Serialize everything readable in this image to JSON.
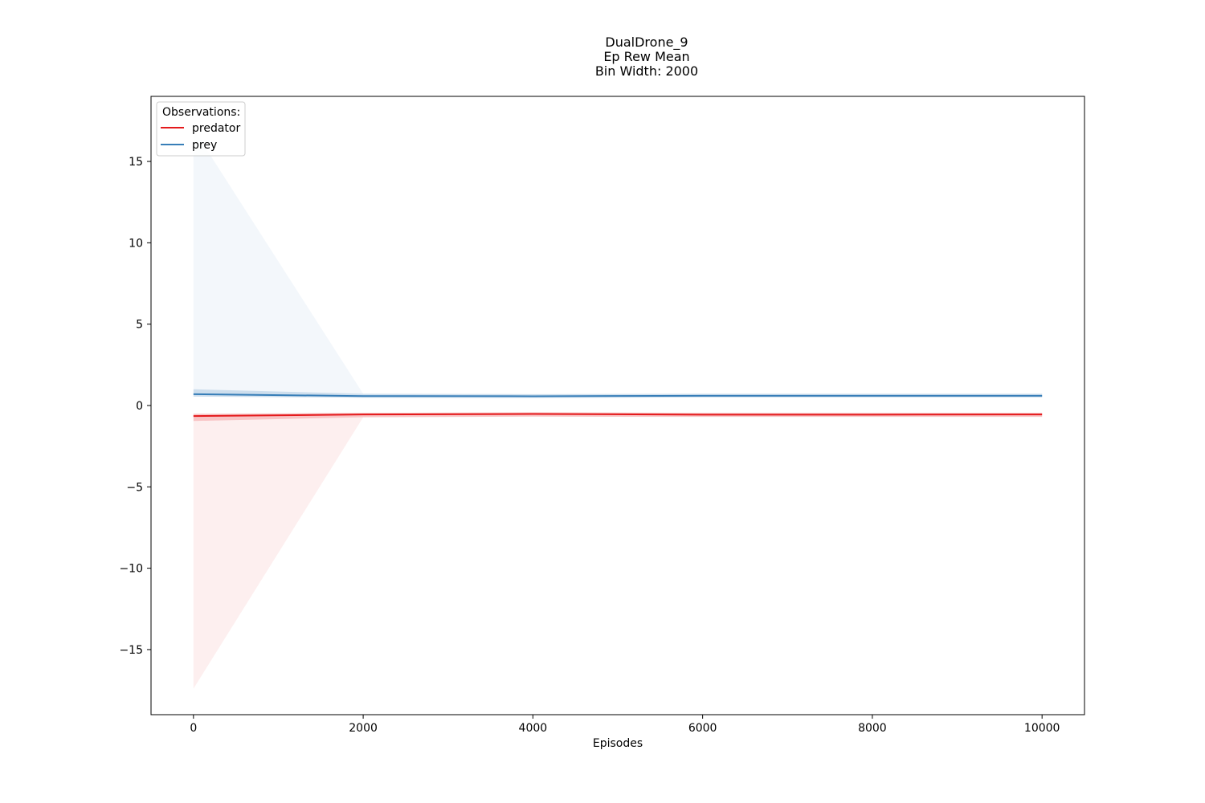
{
  "chart_data": {
    "type": "line",
    "title_lines": [
      "DualDrone_9",
      "Ep Rew Mean",
      "Bin Width: 2000"
    ],
    "xlabel": "Episodes",
    "ylabel": "",
    "xlim": [
      -500,
      10500
    ],
    "ylim": [
      -19,
      19
    ],
    "xticks": [
      0,
      2000,
      4000,
      6000,
      8000,
      10000
    ],
    "yticks": [
      15,
      10,
      5,
      0,
      -5,
      -10,
      -15
    ],
    "xtick_labels": [
      "0",
      "2000",
      "4000",
      "6000",
      "8000",
      "10000"
    ],
    "ytick_labels": [
      "15",
      "10",
      "5",
      "0",
      "−5",
      "−10",
      "−15"
    ],
    "grid": false,
    "legend": {
      "title": "Observations:",
      "placement": "top-left"
    },
    "x": [
      0,
      2000,
      4000,
      6000,
      8000,
      10000
    ],
    "series": [
      {
        "name": "predator",
        "color": "#e41a1c",
        "values": [
          -0.65,
          -0.55,
          -0.52,
          -0.56,
          -0.56,
          -0.55
        ],
        "band_lower": [
          -17.4,
          -0.72,
          -0.68,
          -0.7,
          -0.7,
          -0.7
        ],
        "band_upper": [
          -0.55,
          -0.45,
          -0.42,
          -0.45,
          -0.45,
          -0.45
        ],
        "outer_lower": [
          -0.95,
          -0.72,
          -0.68,
          -0.7,
          -0.7,
          -0.7
        ],
        "outer_upper": [
          -0.5,
          -0.45,
          -0.42,
          -0.45,
          -0.45,
          -0.45
        ],
        "band_opacity": [
          0.07,
          0.2
        ]
      },
      {
        "name": "prey",
        "color": "#377eb8",
        "values": [
          0.7,
          0.58,
          0.57,
          0.6,
          0.6,
          0.6
        ],
        "band_lower": [
          0.55,
          0.48,
          0.47,
          0.5,
          0.5,
          0.5
        ],
        "band_upper": [
          17.0,
          0.72,
          0.7,
          0.72,
          0.72,
          0.72
        ],
        "outer_lower": [
          0.55,
          0.48,
          0.47,
          0.5,
          0.5,
          0.5
        ],
        "outer_upper": [
          1.0,
          0.72,
          0.7,
          0.72,
          0.72,
          0.72
        ],
        "band_opacity": [
          0.06,
          0.2
        ]
      }
    ]
  }
}
